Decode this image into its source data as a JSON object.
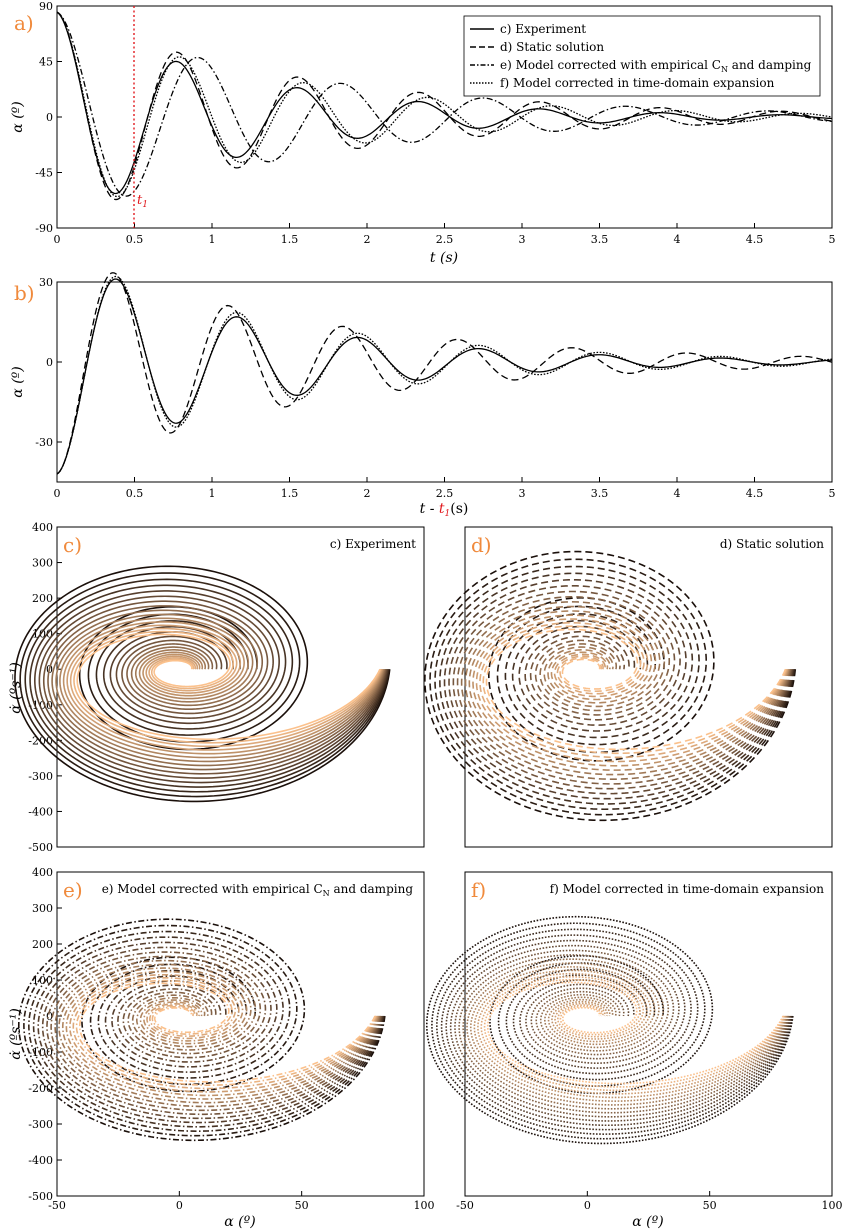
{
  "colors": {
    "accent_label": "#f08a3c",
    "marker_red": "#e0191e",
    "gradient_dark": "#1a0f0a",
    "gradient_light": "#fbc18c"
  },
  "chart_data": [
    {
      "panel": "a)",
      "type": "line",
      "xlabel": "t (s)",
      "ylabel": "α (º)",
      "xlim": [
        0,
        5
      ],
      "ylim": [
        -90,
        90
      ],
      "xticks": [
        "0",
        "0.5",
        "1",
        "1.5",
        "2",
        "2.5",
        "3",
        "3.5",
        "4",
        "4.5",
        "5"
      ],
      "yticks": [
        "-90",
        "-45",
        "0",
        "45",
        "90"
      ],
      "vline": {
        "x": 0.5,
        "label": "t1"
      },
      "legend": {
        "position": "top-right",
        "entries": [
          "c) Experiment",
          "d) Static solution",
          "e) Model corrected with empirical C",
          "f) Model corrected in time-domain expansion"
        ],
        "entry3_sub": "N",
        "entry3_tail": " and damping"
      },
      "series": [
        {
          "style": "solid",
          "start": 85,
          "period": 0.78,
          "decay": 0.82,
          "phase": 0.0
        },
        {
          "style": "dashed",
          "start": 85,
          "period": 0.78,
          "decay": 0.62,
          "phase": 0.0
        },
        {
          "style": "dashdot",
          "start": 85,
          "period": 0.92,
          "decay": 0.62,
          "phase": 0.0
        },
        {
          "style": "dotted",
          "start": 85,
          "period": 0.8,
          "decay": 0.7,
          "phase": 0.0
        }
      ]
    },
    {
      "panel": "b)",
      "type": "line",
      "xlabel": "t - t1(s)",
      "ylabel": "α (º)",
      "xlim": [
        0,
        5
      ],
      "ylim": [
        -45,
        30
      ],
      "xticks": [
        "0",
        "0.5",
        "1",
        "1.5",
        "2",
        "2.5",
        "3",
        "3.5",
        "4",
        "4.5",
        "5"
      ],
      "yticks": [
        "-30",
        "0",
        "30"
      ],
      "series": [
        {
          "style": "solid",
          "start": -42,
          "period": 0.78,
          "decay": 0.78,
          "phase": 0.0
        },
        {
          "style": "dashed",
          "start": -42,
          "period": 0.74,
          "decay": 0.62,
          "phase": 0.0
        },
        {
          "style": "dotted",
          "start": -42,
          "period": 0.78,
          "decay": 0.7,
          "phase": 0.0
        }
      ]
    },
    {
      "panel": "c)",
      "type": "line",
      "title": "c) Experiment",
      "ylabel": "α̇ (ºs⁻¹)",
      "xlim": [
        -50,
        100
      ],
      "ylim": [
        -500,
        400
      ],
      "yticks": [
        "-500",
        "-400",
        "-300",
        "-200",
        "-100",
        "0",
        "100",
        "200",
        "300",
        "400"
      ],
      "style": "solid",
      "curves": 16,
      "phase_portrait": {
        "alpha0": 86,
        "rate_min": -420,
        "rate_max": 280
      }
    },
    {
      "panel": "d)",
      "type": "line",
      "title": "d) Static solution",
      "xlim": [
        -50,
        100
      ],
      "ylim": [
        -500,
        400
      ],
      "style": "dashed",
      "curves": 16,
      "phase_portrait": {
        "alpha0": 85,
        "rate_min": -480,
        "rate_max": 340
      }
    },
    {
      "panel": "e)",
      "type": "line",
      "title": "e) Model corrected with empirical C",
      "title_sub": "N",
      "title_tail": " and damping",
      "ylabel": "α̇ (ºs⁻¹)",
      "xlabel": "α (º)",
      "xlim": [
        -50,
        100
      ],
      "ylim": [
        -500,
        400
      ],
      "xticks": [
        "-50",
        "0",
        "50",
        "100"
      ],
      "yticks": [
        "-500",
        "-400",
        "-300",
        "-200",
        "-100",
        "0",
        "100",
        "200",
        "300",
        "400"
      ],
      "style": "dashdot",
      "curves": 16,
      "phase_portrait": {
        "alpha0": 84,
        "rate_min": -390,
        "rate_max": 260
      }
    },
    {
      "panel": "f)",
      "type": "line",
      "title": "f) Model corrected in time-domain expansion",
      "xlabel": "α (º)",
      "xlim": [
        -50,
        100
      ],
      "ylim": [
        -500,
        400
      ],
      "xticks": [
        "-50",
        "0",
        "50",
        "100"
      ],
      "style": "dotted",
      "curves": 16,
      "phase_portrait": {
        "alpha0": 84,
        "rate_min": -400,
        "rate_max": 240
      }
    }
  ]
}
